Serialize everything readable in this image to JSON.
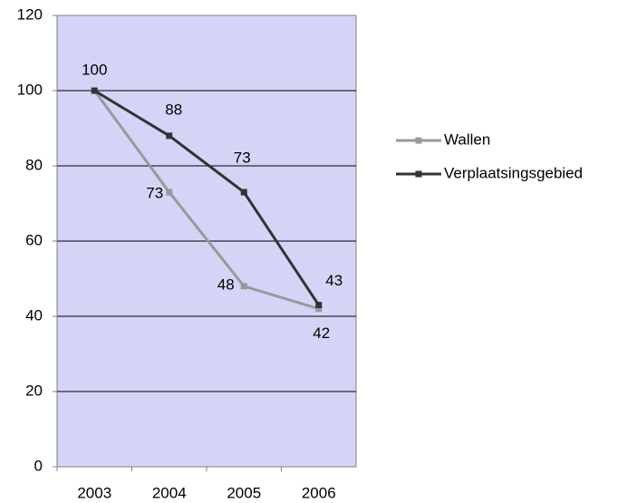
{
  "chart_data": {
    "type": "line",
    "categories": [
      "2003",
      "2004",
      "2005",
      "2006"
    ],
    "series": [
      {
        "name": "Wallen",
        "color": "#999999",
        "values": [
          100,
          73,
          48,
          42
        ]
      },
      {
        "name": "Verplaatsingsgebied",
        "color": "#333333",
        "values": [
          100,
          88,
          73,
          43
        ]
      }
    ],
    "ylim": [
      0,
      120
    ],
    "yticks": [
      0,
      20,
      40,
      60,
      80,
      100,
      120
    ],
    "grid": true,
    "legend": "right",
    "background": "#d4d4f7"
  }
}
